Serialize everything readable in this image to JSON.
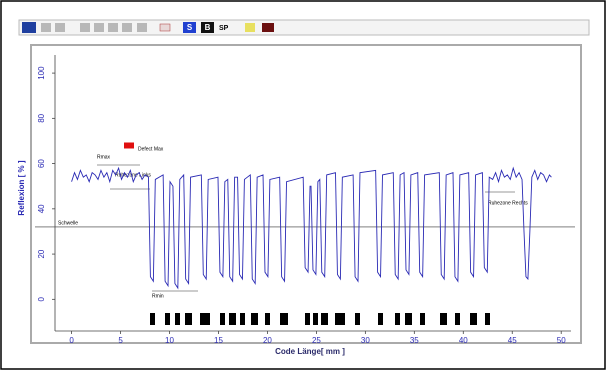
{
  "toolbar": [
    "S",
    "B",
    "SP"
  ],
  "chart_data": {
    "type": "line",
    "xlabel": "Code Länge[ mm ]",
    "ylabel": "Reflexion [ % ]",
    "color": "#2a2ab4",
    "xlim": [
      -2,
      51
    ],
    "xticks": [
      0,
      5,
      10,
      15,
      20,
      25,
      30,
      35,
      40,
      45,
      50
    ],
    "ylim": [
      -14,
      108
    ],
    "yticks": [
      0,
      20,
      40,
      60,
      80,
      100
    ],
    "threshold": 32,
    "defect_max": 68,
    "annotations": [
      "Rmax",
      "Defect Max",
      "Ruhezone Links",
      "Schwelle",
      "Rmin",
      "Ruhezone Rechts"
    ],
    "x": [
      0,
      0.3,
      0.6,
      0.9,
      1.2,
      1.5,
      1.8,
      2.1,
      2.4,
      2.7,
      3,
      3.3,
      3.6,
      3.9,
      4.2,
      4.5,
      4.8,
      5.1,
      5.4,
      5.7,
      6,
      6.3,
      6.6,
      6.9,
      7.2,
      7.5,
      7.85,
      8.05,
      8.35,
      8.55,
      9.35,
      9.55,
      9.85,
      10.05,
      10.35,
      10.55,
      10.85,
      11.05,
      11.45,
      11.65,
      11.95,
      12.15,
      13.25,
      13.45,
      13.75,
      13.95,
      14.95,
      15.15,
      15.45,
      15.65,
      15.95,
      16.15,
      16.45,
      16.65,
      16.95,
      17.15,
      17.45,
      17.65,
      18.25,
      18.45,
      18.75,
      18.95,
      19.55,
      19.75,
      20.05,
      20.25,
      21.25,
      21.45,
      21.75,
      21.95,
      23.65,
      23.85,
      24.15,
      24.35,
      24.45,
      24.65,
      24.95,
      25.15,
      25.35,
      25.55,
      25.85,
      26.05,
      26.95,
      27.15,
      27.45,
      27.65,
      28.75,
      28.95,
      29.25,
      29.45,
      31.05,
      31.25,
      31.55,
      31.75,
      32.85,
      33.05,
      33.35,
      33.55,
      33.95,
      34.15,
      34.45,
      34.65,
      35.35,
      35.55,
      35.85,
      36.05,
      37.55,
      37.75,
      38.05,
      38.25,
      38.95,
      39.15,
      39.45,
      39.65,
      40.55,
      40.75,
      41.05,
      41.25,
      41.95,
      42.15,
      42.45,
      42.65,
      43,
      43.3,
      43.6,
      43.9,
      44.2,
      44.5,
      44.8,
      45.1,
      45.4,
      45.7,
      46,
      46.2,
      46.4,
      46.6,
      46.8,
      47,
      47.3,
      47.6,
      47.9,
      48.2,
      48.5,
      48.8,
      49
    ],
    "values": [
      52,
      56,
      53,
      57,
      54,
      55,
      52,
      56,
      55,
      53,
      57,
      54,
      56,
      52,
      57,
      55,
      58,
      53,
      56,
      54,
      57,
      52,
      55,
      56,
      53,
      55,
      54,
      10,
      8,
      53,
      55,
      8,
      6,
      52,
      50,
      7,
      5,
      53,
      55,
      9,
      7,
      54,
      55,
      11,
      9,
      53,
      54,
      12,
      10,
      52,
      53,
      10,
      8,
      54,
      54,
      11,
      9,
      53,
      55,
      9,
      7,
      54,
      55,
      12,
      10,
      53,
      54,
      10,
      8,
      52,
      54,
      14,
      12,
      50,
      50,
      13,
      11,
      52,
      53,
      12,
      10,
      55,
      56,
      11,
      9,
      54,
      55,
      10,
      8,
      56,
      57,
      12,
      10,
      55,
      56,
      11,
      9,
      55,
      56,
      13,
      11,
      55,
      56,
      12,
      10,
      55,
      56,
      11,
      9,
      55,
      56,
      10,
      8,
      55,
      56,
      12,
      10,
      55,
      56,
      14,
      12,
      54,
      53,
      56,
      52,
      57,
      54,
      55,
      53,
      58,
      54,
      56,
      53,
      30,
      10,
      9,
      30,
      54,
      57,
      53,
      56,
      55,
      52,
      55,
      54
    ]
  }
}
